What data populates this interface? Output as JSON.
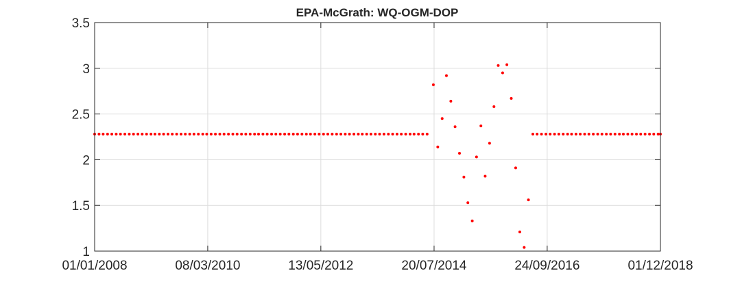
{
  "chart_data": {
    "type": "scatter",
    "title": "EPA-McGrath: WQ-OGM-DOP",
    "xlabel": "",
    "ylabel": "",
    "xlim": [
      "2008-01-01",
      "2018-12-01"
    ],
    "ylim": [
      1,
      3.5
    ],
    "x_ticks": [
      "01/01/2008",
      "08/03/2010",
      "13/05/2012",
      "20/07/2014",
      "24/09/2016",
      "01/12/2018"
    ],
    "y_ticks": [
      "1",
      "1.5",
      "2",
      "2.5",
      "3",
      "3.5"
    ],
    "grid": true,
    "marker_color": "#ff0000",
    "series": [
      {
        "points": [
          {
            "x": "2008-01-01",
            "y": 2.28
          },
          {
            "x": "2008-02-01",
            "y": 2.28
          },
          {
            "x": "2008-03-01",
            "y": 2.28
          },
          {
            "x": "2008-04-01",
            "y": 2.28
          },
          {
            "x": "2008-05-01",
            "y": 2.28
          },
          {
            "x": "2008-06-01",
            "y": 2.28
          },
          {
            "x": "2008-07-01",
            "y": 2.28
          },
          {
            "x": "2008-08-01",
            "y": 2.28
          },
          {
            "x": "2008-09-01",
            "y": 2.28
          },
          {
            "x": "2008-10-01",
            "y": 2.28
          },
          {
            "x": "2008-11-01",
            "y": 2.28
          },
          {
            "x": "2008-12-01",
            "y": 2.28
          },
          {
            "x": "2009-01-01",
            "y": 2.28
          },
          {
            "x": "2009-02-01",
            "y": 2.28
          },
          {
            "x": "2009-03-01",
            "y": 2.28
          },
          {
            "x": "2009-04-01",
            "y": 2.28
          },
          {
            "x": "2009-05-01",
            "y": 2.28
          },
          {
            "x": "2009-06-01",
            "y": 2.28
          },
          {
            "x": "2009-07-01",
            "y": 2.28
          },
          {
            "x": "2009-08-01",
            "y": 2.28
          },
          {
            "x": "2009-09-01",
            "y": 2.28
          },
          {
            "x": "2009-10-01",
            "y": 2.28
          },
          {
            "x": "2009-11-01",
            "y": 2.28
          },
          {
            "x": "2009-12-01",
            "y": 2.28
          },
          {
            "x": "2010-01-01",
            "y": 2.28
          },
          {
            "x": "2010-02-01",
            "y": 2.28
          },
          {
            "x": "2010-03-01",
            "y": 2.28
          },
          {
            "x": "2010-04-01",
            "y": 2.28
          },
          {
            "x": "2010-05-01",
            "y": 2.28
          },
          {
            "x": "2010-06-01",
            "y": 2.28
          },
          {
            "x": "2010-07-01",
            "y": 2.28
          },
          {
            "x": "2010-08-01",
            "y": 2.28
          },
          {
            "x": "2010-09-01",
            "y": 2.28
          },
          {
            "x": "2010-10-01",
            "y": 2.28
          },
          {
            "x": "2010-11-01",
            "y": 2.28
          },
          {
            "x": "2010-12-01",
            "y": 2.28
          },
          {
            "x": "2011-01-01",
            "y": 2.28
          },
          {
            "x": "2011-02-01",
            "y": 2.28
          },
          {
            "x": "2011-03-01",
            "y": 2.28
          },
          {
            "x": "2011-04-01",
            "y": 2.28
          },
          {
            "x": "2011-05-01",
            "y": 2.28
          },
          {
            "x": "2011-06-01",
            "y": 2.28
          },
          {
            "x": "2011-07-01",
            "y": 2.28
          },
          {
            "x": "2011-08-01",
            "y": 2.28
          },
          {
            "x": "2011-09-01",
            "y": 2.28
          },
          {
            "x": "2011-10-01",
            "y": 2.28
          },
          {
            "x": "2011-11-01",
            "y": 2.28
          },
          {
            "x": "2011-12-01",
            "y": 2.28
          },
          {
            "x": "2012-01-01",
            "y": 2.28
          },
          {
            "x": "2012-02-01",
            "y": 2.28
          },
          {
            "x": "2012-03-01",
            "y": 2.28
          },
          {
            "x": "2012-04-01",
            "y": 2.28
          },
          {
            "x": "2012-05-01",
            "y": 2.28
          },
          {
            "x": "2012-06-01",
            "y": 2.28
          },
          {
            "x": "2012-07-01",
            "y": 2.28
          },
          {
            "x": "2012-08-01",
            "y": 2.28
          },
          {
            "x": "2012-09-01",
            "y": 2.28
          },
          {
            "x": "2012-10-01",
            "y": 2.28
          },
          {
            "x": "2012-11-01",
            "y": 2.28
          },
          {
            "x": "2012-12-01",
            "y": 2.28
          },
          {
            "x": "2013-01-01",
            "y": 2.28
          },
          {
            "x": "2013-02-01",
            "y": 2.28
          },
          {
            "x": "2013-03-01",
            "y": 2.28
          },
          {
            "x": "2013-04-01",
            "y": 2.28
          },
          {
            "x": "2013-05-01",
            "y": 2.28
          },
          {
            "x": "2013-06-01",
            "y": 2.28
          },
          {
            "x": "2013-07-01",
            "y": 2.28
          },
          {
            "x": "2013-08-01",
            "y": 2.28
          },
          {
            "x": "2013-09-01",
            "y": 2.28
          },
          {
            "x": "2013-10-01",
            "y": 2.28
          },
          {
            "x": "2013-11-01",
            "y": 2.28
          },
          {
            "x": "2013-12-01",
            "y": 2.28
          },
          {
            "x": "2014-01-01",
            "y": 2.28
          },
          {
            "x": "2014-02-01",
            "y": 2.28
          },
          {
            "x": "2014-03-01",
            "y": 2.28
          },
          {
            "x": "2014-04-01",
            "y": 2.28
          },
          {
            "x": "2014-05-01",
            "y": 2.28
          },
          {
            "x": "2014-06-01",
            "y": 2.28
          },
          {
            "x": "2014-07-15",
            "y": 2.82
          },
          {
            "x": "2014-08-15",
            "y": 2.14
          },
          {
            "x": "2014-09-15",
            "y": 2.45
          },
          {
            "x": "2014-10-15",
            "y": 2.92
          },
          {
            "x": "2014-11-15",
            "y": 2.64
          },
          {
            "x": "2014-12-15",
            "y": 2.36
          },
          {
            "x": "2015-01-15",
            "y": 2.07
          },
          {
            "x": "2015-02-15",
            "y": 1.81
          },
          {
            "x": "2015-03-15",
            "y": 1.53
          },
          {
            "x": "2015-04-15",
            "y": 1.33
          },
          {
            "x": "2015-05-15",
            "y": 2.03
          },
          {
            "x": "2015-06-15",
            "y": 2.37
          },
          {
            "x": "2015-07-15",
            "y": 1.82
          },
          {
            "x": "2015-08-15",
            "y": 2.18
          },
          {
            "x": "2015-09-15",
            "y": 2.58
          },
          {
            "x": "2015-10-15",
            "y": 3.03
          },
          {
            "x": "2015-11-15",
            "y": 2.95
          },
          {
            "x": "2015-12-15",
            "y": 3.04
          },
          {
            "x": "2016-01-15",
            "y": 2.67
          },
          {
            "x": "2016-02-15",
            "y": 1.91
          },
          {
            "x": "2016-03-15",
            "y": 1.21
          },
          {
            "x": "2016-04-15",
            "y": 1.04
          },
          {
            "x": "2016-05-15",
            "y": 1.56
          },
          {
            "x": "2016-06-15",
            "y": 2.28
          },
          {
            "x": "2016-07-15",
            "y": 2.28
          },
          {
            "x": "2016-08-15",
            "y": 2.28
          },
          {
            "x": "2016-09-15",
            "y": 2.28
          },
          {
            "x": "2016-10-15",
            "y": 2.28
          },
          {
            "x": "2016-11-15",
            "y": 2.28
          },
          {
            "x": "2016-12-15",
            "y": 2.28
          },
          {
            "x": "2017-01-15",
            "y": 2.28
          },
          {
            "x": "2017-02-15",
            "y": 2.28
          },
          {
            "x": "2017-03-15",
            "y": 2.28
          },
          {
            "x": "2017-04-15",
            "y": 2.28
          },
          {
            "x": "2017-05-15",
            "y": 2.28
          },
          {
            "x": "2017-06-15",
            "y": 2.28
          },
          {
            "x": "2017-07-15",
            "y": 2.28
          },
          {
            "x": "2017-08-15",
            "y": 2.28
          },
          {
            "x": "2017-09-15",
            "y": 2.28
          },
          {
            "x": "2017-10-15",
            "y": 2.28
          },
          {
            "x": "2017-11-15",
            "y": 2.28
          },
          {
            "x": "2017-12-15",
            "y": 2.28
          },
          {
            "x": "2018-01-15",
            "y": 2.28
          },
          {
            "x": "2018-02-15",
            "y": 2.28
          },
          {
            "x": "2018-03-15",
            "y": 2.28
          },
          {
            "x": "2018-04-15",
            "y": 2.28
          },
          {
            "x": "2018-05-15",
            "y": 2.28
          },
          {
            "x": "2018-06-15",
            "y": 2.28
          },
          {
            "x": "2018-07-15",
            "y": 2.28
          },
          {
            "x": "2018-08-15",
            "y": 2.28
          },
          {
            "x": "2018-09-15",
            "y": 2.28
          },
          {
            "x": "2018-10-15",
            "y": 2.28
          },
          {
            "x": "2018-11-15",
            "y": 2.28
          },
          {
            "x": "2018-12-01",
            "y": 2.28
          }
        ]
      }
    ]
  }
}
